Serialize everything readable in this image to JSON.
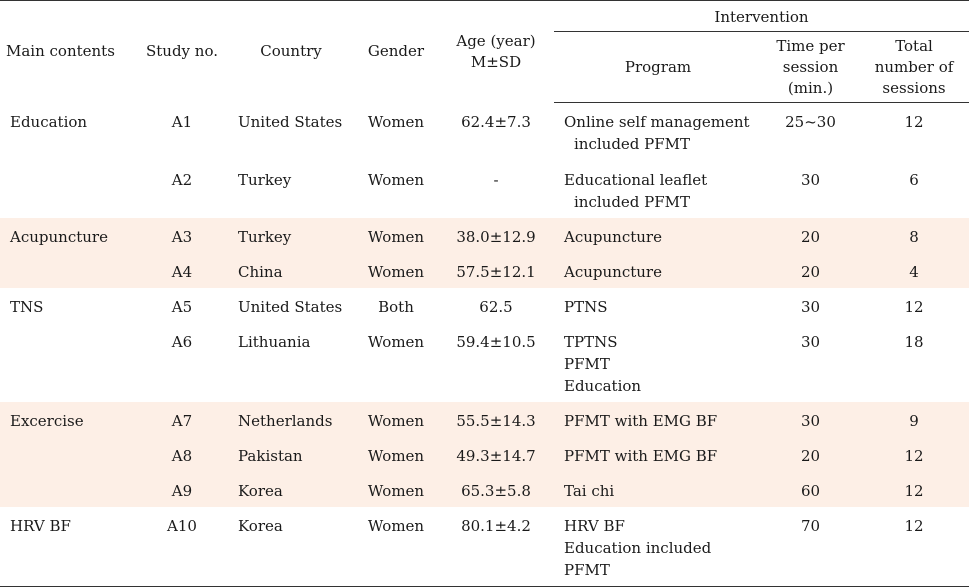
{
  "headers": {
    "main_contents": "Main contents",
    "study_no": "Study no.",
    "country": "Country",
    "gender": "Gender",
    "age_line1": "Age (year)",
    "age_line2": "M±SD",
    "intervention": "Intervention",
    "program": "Program",
    "time_line1": "Time per",
    "time_line2": "session",
    "time_line3": "(min.)",
    "total_line1": "Total",
    "total_line2": "number of",
    "total_line3": "sessions"
  },
  "rows": [
    {
      "main": "Education",
      "study": "A1",
      "country": "United States",
      "gender": "Women",
      "age": "62.4±7.3",
      "program": [
        "Online self management",
        "included PFMT"
      ],
      "time": "25~30",
      "total": "12"
    },
    {
      "main": "",
      "study": "A2",
      "country": "Turkey",
      "gender": "Women",
      "age": "-",
      "program": [
        "Educational leaflet",
        "included PFMT"
      ],
      "time": "30",
      "total": "6"
    },
    {
      "main": "Acupuncture",
      "study": "A3",
      "country": "Turkey",
      "gender": "Women",
      "age": "38.0±12.9",
      "program": [
        "Acupuncture"
      ],
      "time": "20",
      "total": "8"
    },
    {
      "main": "",
      "study": "A4",
      "country": "China",
      "gender": "Women",
      "age": "57.5±12.1",
      "program": [
        "Acupuncture"
      ],
      "time": "20",
      "total": "4"
    },
    {
      "main": "TNS",
      "study": "A5",
      "country": "United States",
      "gender": "Both",
      "age": "62.5",
      "program": [
        "PTNS"
      ],
      "time": "30",
      "total": "12"
    },
    {
      "main": "",
      "study": "A6",
      "country": "Lithuania",
      "gender": "Women",
      "age": "59.4±10.5",
      "program": [
        "TPTNS",
        "PFMT",
        "Education"
      ],
      "time": "30",
      "total": "18"
    },
    {
      "main": "Excercise",
      "study": "A7",
      "country": "Netherlands",
      "gender": "Women",
      "age": "55.5±14.3",
      "program": [
        "PFMT with EMG BF"
      ],
      "time": "30",
      "total": "9"
    },
    {
      "main": "",
      "study": "A8",
      "country": "Pakistan",
      "gender": "Women",
      "age": "49.3±14.7",
      "program": [
        "PFMT with EMG BF"
      ],
      "time": "20",
      "total": "12"
    },
    {
      "main": "",
      "study": "A9",
      "country": "Korea",
      "gender": "Women",
      "age": "65.3±5.8",
      "program": [
        "Tai chi"
      ],
      "time": "60",
      "total": "12"
    },
    {
      "main": "HRV BF",
      "study": "A10",
      "country": "Korea",
      "gender": "Women",
      "age": "80.1±4.2",
      "program": [
        "HRV BF",
        "Education included PFMT"
      ],
      "time": "70",
      "total": "12"
    }
  ]
}
